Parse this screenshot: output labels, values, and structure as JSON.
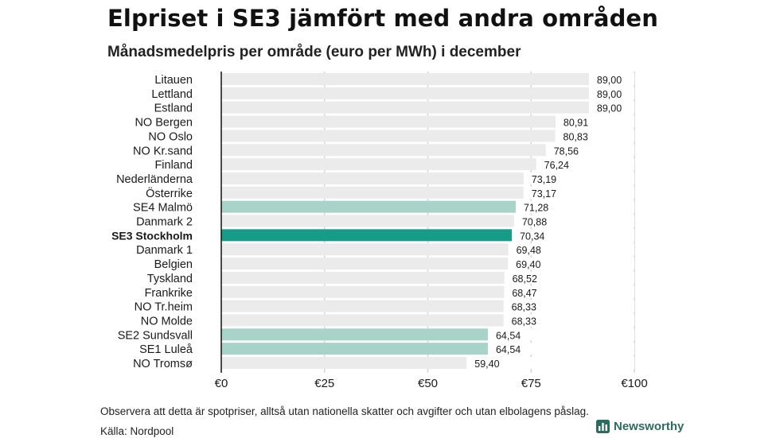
{
  "title": "Elpriset i SE3 jämfört med andra områden",
  "subtitle": "Månadsmedelpris per område (euro per MWh) i december",
  "footnote": "Observera att detta är spotpriser, alltså utan nationella skatter och avgifter och utan elbolagens påslag.",
  "source": "Källa: Nordpool",
  "brand": "Newsworthy",
  "colors": {
    "background_bar": "#ebebeb",
    "default_bar": "#ebebeb",
    "se_bar": "#a8d3c8",
    "highlight_bar": "#169c88",
    "grid": "#d6d6d6",
    "brand": "#2c6b5f"
  },
  "chart_data": {
    "type": "bar",
    "orientation": "horizontal",
    "title": "Elpriset i SE3 jämfört med andra områden",
    "subtitle": "Månadsmedelpris per område (euro per MWh) i december",
    "xlim": [
      0,
      100
    ],
    "xticks": [
      0,
      25,
      50,
      75,
      100
    ],
    "xtick_labels": [
      "€0",
      "€25",
      "€50",
      "€75",
      "€100"
    ],
    "grid": true,
    "categories": [
      "Litauen",
      "Lettland",
      "Estland",
      "NO Bergen",
      "NO Oslo",
      "NO Kr.sand",
      "Finland",
      "Nederländerna",
      "Österrike",
      "SE4 Malmö",
      "Danmark 2",
      "SE3 Stockholm",
      "Danmark 1",
      "Belgien",
      "Tyskland",
      "Frankrike",
      "NO Tr.heim",
      "NO Molde",
      "SE2 Sundsvall",
      "SE1 Luleå",
      "NO Tromsø"
    ],
    "values": [
      89.0,
      89.0,
      89.0,
      80.91,
      80.83,
      78.56,
      76.24,
      73.19,
      73.17,
      71.28,
      70.88,
      70.34,
      69.48,
      69.4,
      68.52,
      68.47,
      68.33,
      68.33,
      64.54,
      64.54,
      59.4
    ],
    "value_labels": [
      "89,00",
      "89,00",
      "89,00",
      "80,91",
      "80,83",
      "78,56",
      "76,24",
      "73,19",
      "73,17",
      "71,28",
      "70,88",
      "70,34",
      "69,48",
      "69,40",
      "68,52",
      "68,47",
      "68,33",
      "68,33",
      "64,54",
      "64,54",
      "59,40"
    ],
    "bar_styles": [
      "default",
      "default",
      "default",
      "default",
      "default",
      "default",
      "default",
      "default",
      "default",
      "se",
      "default",
      "highlight",
      "default",
      "default",
      "default",
      "default",
      "default",
      "default",
      "se",
      "se",
      "default"
    ],
    "highlight_category": "SE3 Stockholm"
  }
}
